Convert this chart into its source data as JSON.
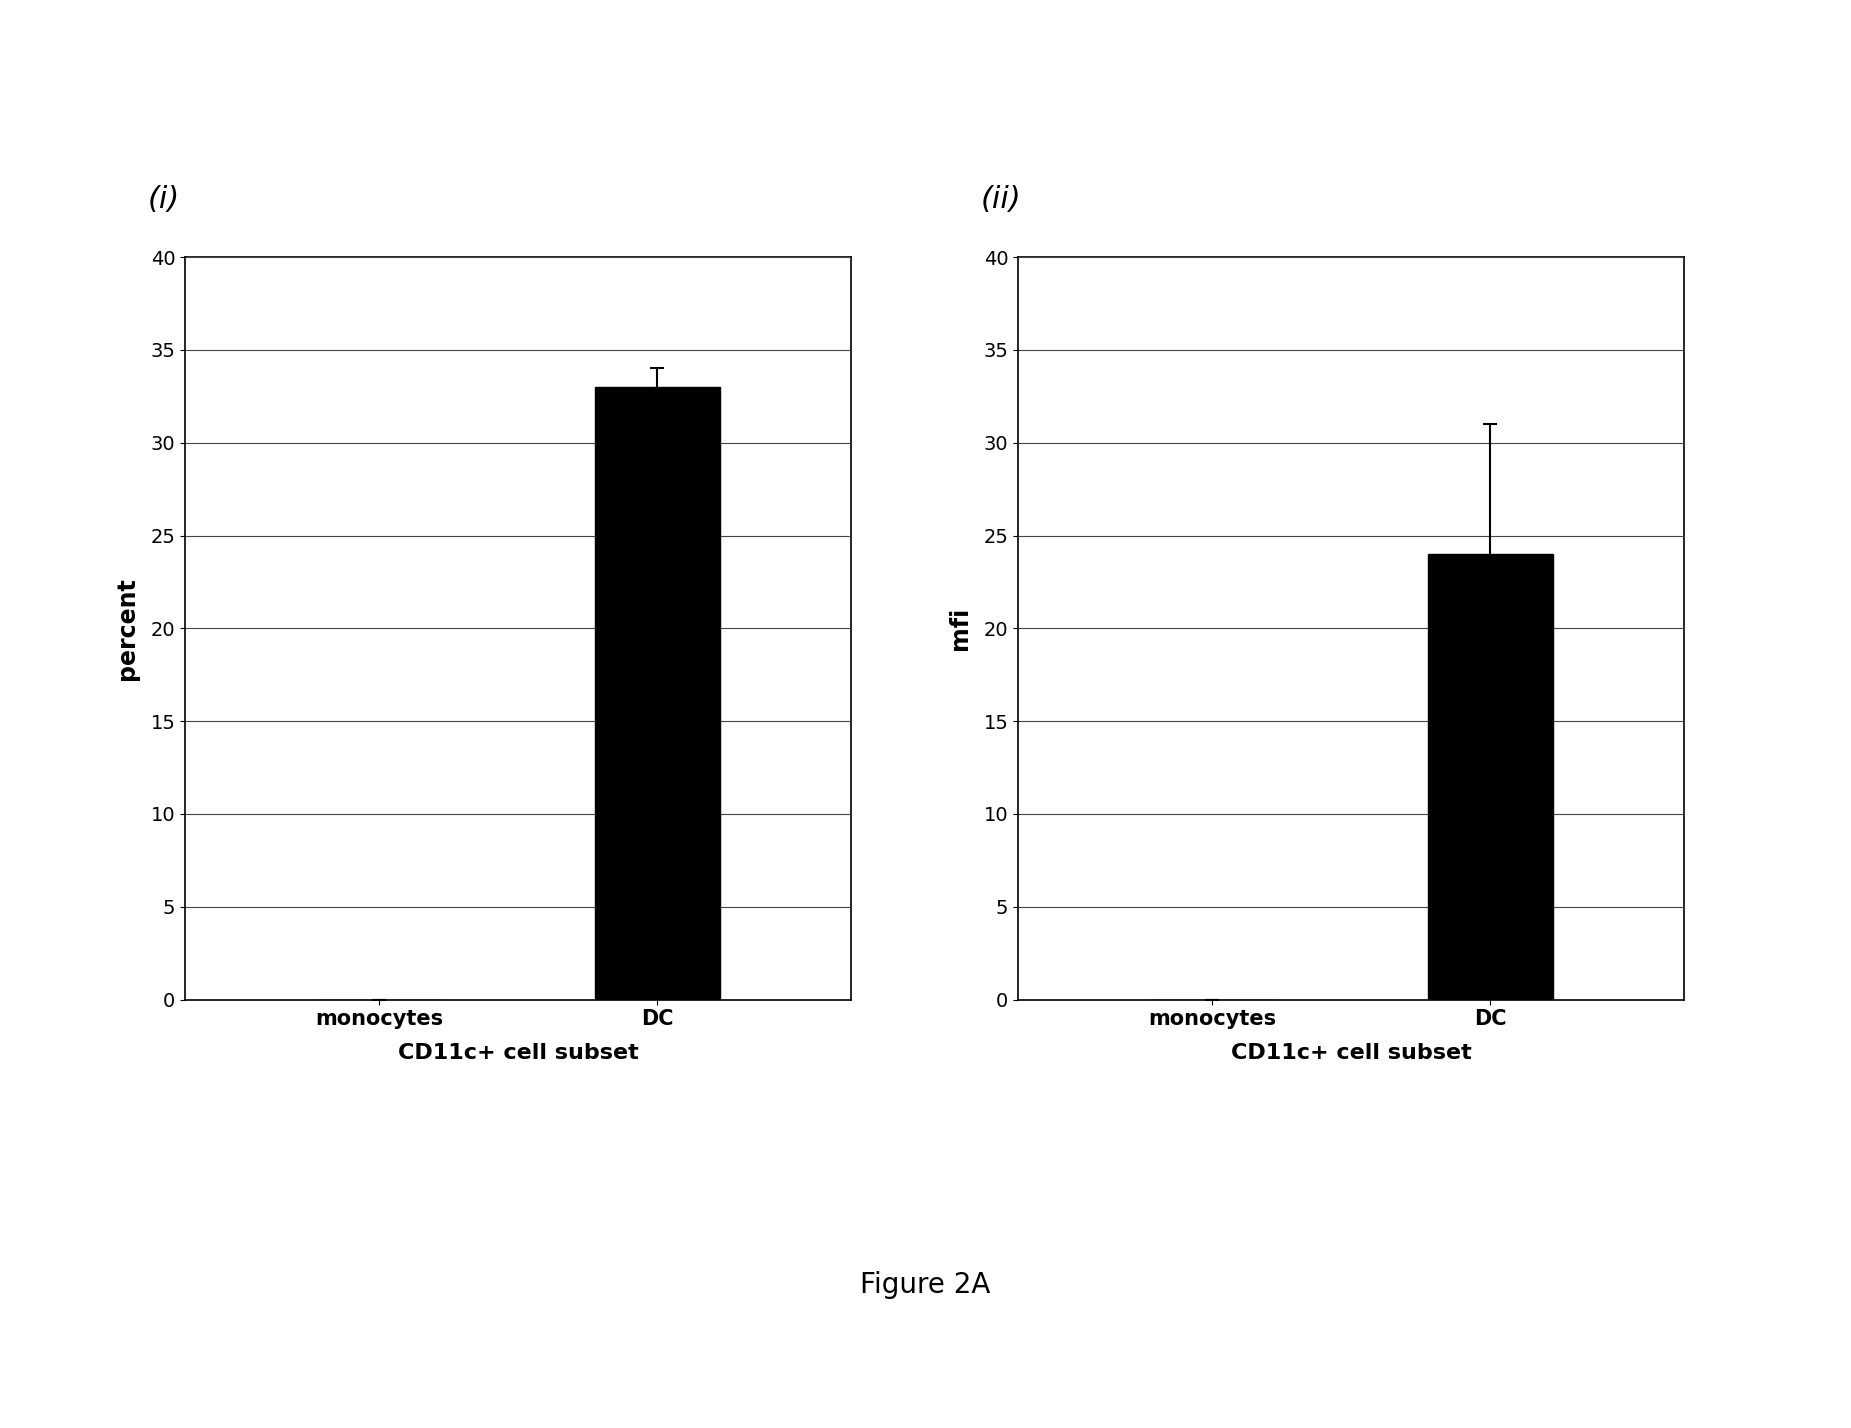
{
  "panel_i": {
    "label": "(i)",
    "categories": [
      "monocytes",
      "DC"
    ],
    "values": [
      0,
      33.0
    ],
    "errors": [
      0,
      1.0
    ],
    "ylabel": "percent",
    "xlabel": "CD11c+ cell subset",
    "ylim": [
      0,
      40
    ],
    "yticks": [
      0,
      5,
      10,
      15,
      20,
      25,
      30,
      35,
      40
    ]
  },
  "panel_ii": {
    "label": "(ii)",
    "categories": [
      "monocytes",
      "DC"
    ],
    "values": [
      0,
      24.0
    ],
    "errors": [
      0,
      7.0
    ],
    "ylabel": "mfi",
    "xlabel": "CD11c+ cell subset",
    "ylim": [
      0,
      40
    ],
    "yticks": [
      0,
      5,
      10,
      15,
      20,
      25,
      30,
      35,
      40
    ]
  },
  "bar_color": "#000000",
  "figure_caption": "Figure 2A",
  "background_color": "#ffffff",
  "bar_width": 0.45
}
